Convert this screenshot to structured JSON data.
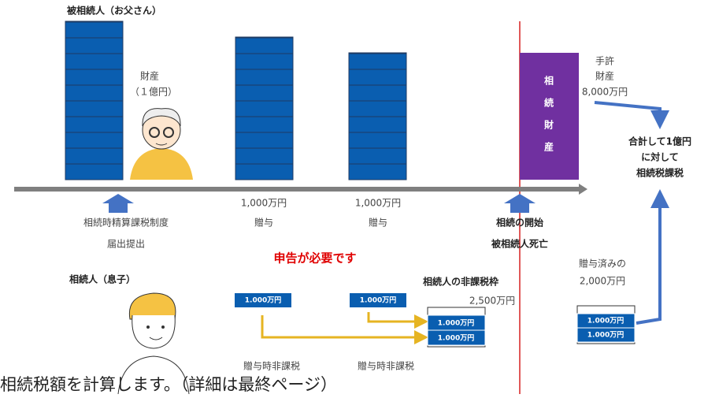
{
  "father": {
    "title": "被相続人（お父さん）",
    "asset_label": "財産",
    "asset_amount": "（１億円）"
  },
  "gifts": [
    {
      "amount": "1,000万円",
      "label": "贈与"
    },
    {
      "amount": "1,000万円",
      "label": "贈与"
    }
  ],
  "inherited_asset": {
    "chars": [
      "相",
      "続",
      "財",
      "産"
    ]
  },
  "on_hand": {
    "line1": "手許",
    "line2": "財産",
    "amount": "8,000万円"
  },
  "total_note": [
    "合計して1億円",
    "に対して",
    "相続税課税"
  ],
  "election": [
    "相続時精算課税制度",
    "届出提出"
  ],
  "start": [
    "相続の開始",
    "被相続人死亡"
  ],
  "notice": "申告が必要です",
  "heir": {
    "title": "相続人（息子）"
  },
  "exemption": {
    "title": "相続人の非課税枠",
    "amount": "2,500万円"
  },
  "gifted": [
    "贈与済みの",
    "2,000万円"
  ],
  "gift_boxes": [
    "1.000万円",
    "1.000万円"
  ],
  "exemption_boxes": [
    "1.000万円",
    "1.000万円"
  ],
  "gifted_boxes": [
    "1.000万円",
    "1.000万円"
  ],
  "tax_free": [
    "贈与時非課税",
    "贈与時非課税"
  ],
  "caption": "相続税額を計算します。（詳細は最終ページ）"
}
